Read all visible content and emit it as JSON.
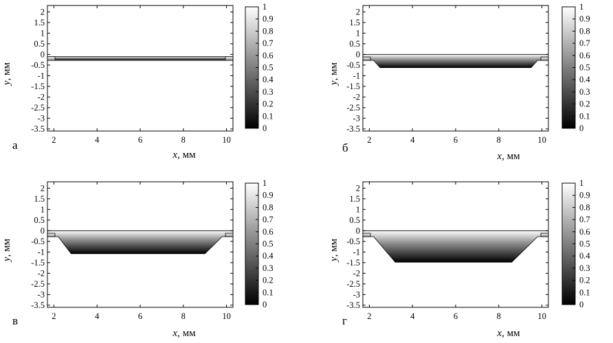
{
  "chart_data": [
    {
      "type": "heatmap",
      "panel_label": "а",
      "xlabel_var": "x",
      "xlabel_unit": ", мм",
      "ylabel_var": "y",
      "ylabel_unit": ", мм",
      "xlim": [
        1.7,
        10.3
      ],
      "ylim": [
        -3.6,
        2.3
      ],
      "xticks": [
        "2",
        "4",
        "6",
        "8",
        "10"
      ],
      "yticks": [
        "2",
        "1.5",
        "1",
        "0.5",
        "0",
        "-0.5",
        "-1",
        "-1.5",
        "-2",
        "-2.5",
        "-3",
        "-3.5"
      ],
      "colorbar_ticks": [
        "1",
        "0.9",
        "0.8",
        "0.7",
        "0.6",
        "0.5",
        "0.4",
        "0.3",
        "0.2",
        "0.1",
        "0"
      ],
      "colorbar_range": [
        0,
        1
      ],
      "region_outline": [
        [
          1.7,
          -0.1
        ],
        [
          10.3,
          -0.1
        ],
        [
          10.3,
          -0.28
        ],
        [
          1.7,
          -0.28
        ]
      ],
      "stub_y": [
        -0.1,
        -0.28
      ]
    },
    {
      "type": "heatmap",
      "panel_label": "б",
      "xlabel_var": "x",
      "xlabel_unit": ", мм",
      "ylabel_var": "y",
      "ylabel_unit": ", мм",
      "xlim": [
        1.7,
        10.3
      ],
      "ylim": [
        -3.6,
        2.3
      ],
      "xticks": [
        "2",
        "4",
        "6",
        "8",
        "10"
      ],
      "yticks": [
        "2",
        "1.5",
        "1",
        "0.5",
        "0",
        "-0.5",
        "-1",
        "-1.5",
        "-2",
        "-2.5",
        "-3",
        "-3.5"
      ],
      "colorbar_ticks": [
        "1",
        "0.9",
        "0.8",
        "0.7",
        "0.6",
        "0.5",
        "0.4",
        "0.3",
        "0.2",
        "0.1",
        "0"
      ],
      "colorbar_range": [
        0,
        1
      ],
      "region_outline": [
        [
          1.7,
          0
        ],
        [
          10.3,
          0
        ],
        [
          10.3,
          -0.28
        ],
        [
          9.8,
          -0.28
        ],
        [
          9.5,
          -0.62
        ],
        [
          2.5,
          -0.62
        ],
        [
          2.2,
          -0.28
        ],
        [
          1.7,
          -0.28
        ]
      ],
      "stub_y": [
        -0.12,
        -0.28
      ]
    },
    {
      "type": "heatmap",
      "panel_label": "в",
      "xlabel_var": "x",
      "xlabel_unit": ", мм",
      "ylabel_var": "y",
      "ylabel_unit": ", мм",
      "xlim": [
        1.7,
        10.3
      ],
      "ylim": [
        -3.6,
        2.3
      ],
      "xticks": [
        "2",
        "4",
        "6",
        "8",
        "10"
      ],
      "yticks": [
        "2",
        "1.5",
        "1",
        "0.5",
        "0",
        "-0.5",
        "-1",
        "-1.5",
        "-2",
        "-2.5",
        "-3",
        "-3.5"
      ],
      "colorbar_ticks": [
        "1",
        "0.9",
        "0.8",
        "0.7",
        "0.6",
        "0.5",
        "0.4",
        "0.3",
        "0.2",
        "0.1",
        "0"
      ],
      "colorbar_range": [
        0,
        1
      ],
      "region_outline": [
        [
          1.7,
          0
        ],
        [
          10.3,
          0
        ],
        [
          10.3,
          -0.28
        ],
        [
          9.8,
          -0.28
        ],
        [
          9.0,
          -1.08
        ],
        [
          2.8,
          -1.08
        ],
        [
          2.2,
          -0.28
        ],
        [
          1.7,
          -0.28
        ]
      ],
      "stub_y": [
        -0.12,
        -0.28
      ]
    },
    {
      "type": "heatmap",
      "panel_label": "г",
      "xlabel_var": "x",
      "xlabel_unit": ", мм",
      "ylabel_var": "y",
      "ylabel_unit": ", мм",
      "xlim": [
        1.7,
        10.3
      ],
      "ylim": [
        -3.6,
        2.3
      ],
      "xticks": [
        "2",
        "4",
        "6",
        "8",
        "10"
      ],
      "yticks": [
        "2",
        "1.5",
        "1",
        "0.5",
        "0",
        "-0.5",
        "-1",
        "-1.5",
        "-2",
        "-2.5",
        "-3",
        "-3.5"
      ],
      "colorbar_ticks": [
        "1",
        "0.9",
        "0.8",
        "0.7",
        "0.6",
        "0.5",
        "0.4",
        "0.3",
        "0.2",
        "0.1",
        "0"
      ],
      "colorbar_range": [
        0,
        1
      ],
      "region_outline": [
        [
          1.7,
          0
        ],
        [
          10.3,
          0
        ],
        [
          10.3,
          -0.28
        ],
        [
          9.8,
          -0.28
        ],
        [
          8.6,
          -1.48
        ],
        [
          3.2,
          -1.48
        ],
        [
          2.2,
          -0.28
        ],
        [
          1.7,
          -0.28
        ]
      ],
      "stub_y": [
        -0.12,
        -0.28
      ]
    }
  ]
}
